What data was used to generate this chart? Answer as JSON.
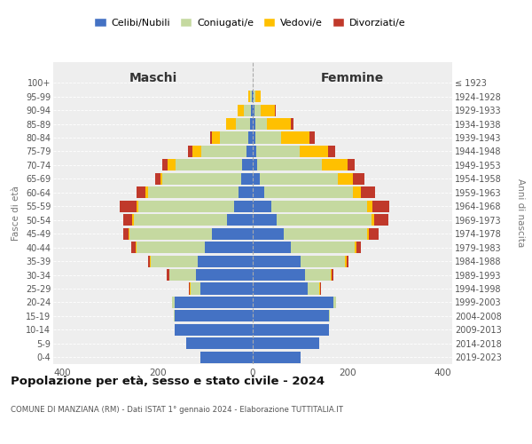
{
  "age_groups": [
    "0-4",
    "5-9",
    "10-14",
    "15-19",
    "20-24",
    "25-29",
    "30-34",
    "35-39",
    "40-44",
    "45-49",
    "50-54",
    "55-59",
    "60-64",
    "65-69",
    "70-74",
    "75-79",
    "80-84",
    "85-89",
    "90-94",
    "95-99",
    "100+"
  ],
  "birth_years": [
    "2019-2023",
    "2014-2018",
    "2009-2013",
    "2004-2008",
    "1999-2003",
    "1994-1998",
    "1989-1993",
    "1984-1988",
    "1979-1983",
    "1974-1978",
    "1969-1973",
    "1964-1968",
    "1959-1963",
    "1954-1958",
    "1949-1953",
    "1944-1948",
    "1939-1943",
    "1934-1938",
    "1929-1933",
    "1924-1928",
    "≤ 1923"
  ],
  "maschi": {
    "celibi": [
      110,
      140,
      165,
      165,
      165,
      110,
      120,
      115,
      100,
      85,
      55,
      40,
      30,
      25,
      22,
      14,
      10,
      6,
      4,
      2,
      0
    ],
    "coniugati": [
      0,
      0,
      0,
      2,
      5,
      20,
      55,
      100,
      145,
      175,
      195,
      200,
      190,
      165,
      140,
      95,
      60,
      30,
      14,
      4,
      0
    ],
    "vedovi": [
      0,
      0,
      0,
      0,
      0,
      2,
      1,
      1,
      2,
      2,
      3,
      5,
      5,
      5,
      18,
      18,
      15,
      20,
      14,
      4,
      0
    ],
    "divorziati": [
      0,
      0,
      0,
      0,
      0,
      2,
      5,
      5,
      8,
      10,
      20,
      35,
      20,
      10,
      10,
      10,
      5,
      0,
      0,
      0,
      0
    ]
  },
  "femmine": {
    "nubili": [
      100,
      140,
      160,
      160,
      170,
      115,
      110,
      100,
      80,
      65,
      50,
      40,
      25,
      15,
      10,
      8,
      5,
      5,
      4,
      2,
      0
    ],
    "coniugate": [
      0,
      0,
      0,
      3,
      5,
      25,
      55,
      95,
      135,
      175,
      200,
      200,
      185,
      165,
      135,
      90,
      55,
      25,
      12,
      4,
      0
    ],
    "vedove": [
      0,
      0,
      0,
      0,
      0,
      1,
      1,
      2,
      3,
      5,
      5,
      12,
      18,
      30,
      55,
      60,
      60,
      50,
      30,
      10,
      0
    ],
    "divorziate": [
      0,
      0,
      0,
      0,
      0,
      2,
      3,
      5,
      10,
      20,
      30,
      35,
      30,
      25,
      15,
      15,
      10,
      5,
      2,
      0,
      0
    ]
  },
  "colors": {
    "celibi": "#4472c4",
    "coniugati": "#c5d9a0",
    "vedovi": "#ffc000",
    "divorziati": "#c0392b"
  },
  "title": "Popolazione per età, sesso e stato civile - 2024",
  "subtitle": "COMUNE DI MANZIANA (RM) - Dati ISTAT 1° gennaio 2024 - Elaborazione TUTTITALIA.IT",
  "xlabel_left": "Maschi",
  "xlabel_right": "Femmine",
  "ylabel_left": "Fasce di età",
  "ylabel_right": "Anni di nascita",
  "xlim": 420,
  "legend_labels": [
    "Celibi/Nubili",
    "Coniugati/e",
    "Vedovi/e",
    "Divorziati/e"
  ],
  "bg_color": "#ffffff",
  "plot_bg_color": "#eeeeee",
  "grid_color": "#ffffff"
}
